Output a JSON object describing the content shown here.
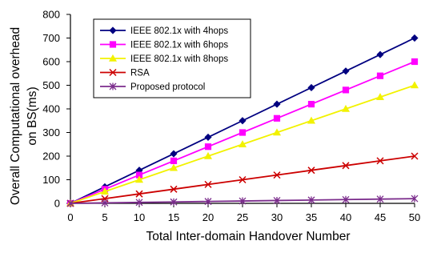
{
  "chart_data": {
    "type": "line",
    "title": "",
    "xlabel": "Total Inter-domain Handover Number",
    "ylabel_lines": [
      "Overall Computational overhead",
      "on BS(ms)"
    ],
    "x": [
      0,
      5,
      10,
      15,
      20,
      25,
      30,
      35,
      40,
      45,
      50
    ],
    "xlim": [
      0,
      50
    ],
    "ylim": [
      0,
      800
    ],
    "xticks": [
      "0",
      "5",
      "10",
      "15",
      "20",
      "25",
      "30",
      "35",
      "40",
      "45",
      "50"
    ],
    "yticks": [
      "0",
      "100",
      "200",
      "300",
      "400",
      "500",
      "600",
      "700",
      "800"
    ],
    "grid": false,
    "legend_position": "top-left",
    "series": [
      {
        "name": "IEEE 802.1x with 4hops",
        "color": "#000080",
        "marker": "diamond",
        "values": [
          0,
          70,
          140,
          210,
          280,
          350,
          420,
          490,
          560,
          630,
          700
        ]
      },
      {
        "name": "IEEE 802.1x with 6hops",
        "color": "#ff00ff",
        "marker": "square",
        "values": [
          0,
          60,
          120,
          180,
          240,
          300,
          360,
          420,
          480,
          540,
          600
        ]
      },
      {
        "name": "IEEE 802.1x with 8hops",
        "color": "#f2f200",
        "marker": "triangle",
        "values": [
          0,
          50,
          100,
          150,
          200,
          250,
          300,
          350,
          400,
          450,
          500
        ]
      },
      {
        "name": "RSA",
        "color": "#cc0000",
        "marker": "x",
        "values": [
          0,
          20,
          40,
          60,
          80,
          100,
          120,
          140,
          160,
          180,
          200
        ]
      },
      {
        "name": "Proposed protocol",
        "color": "#7b2c8c",
        "marker": "star",
        "values": [
          0,
          2,
          4,
          6,
          8,
          10,
          12,
          14,
          16,
          18,
          20
        ]
      }
    ]
  }
}
